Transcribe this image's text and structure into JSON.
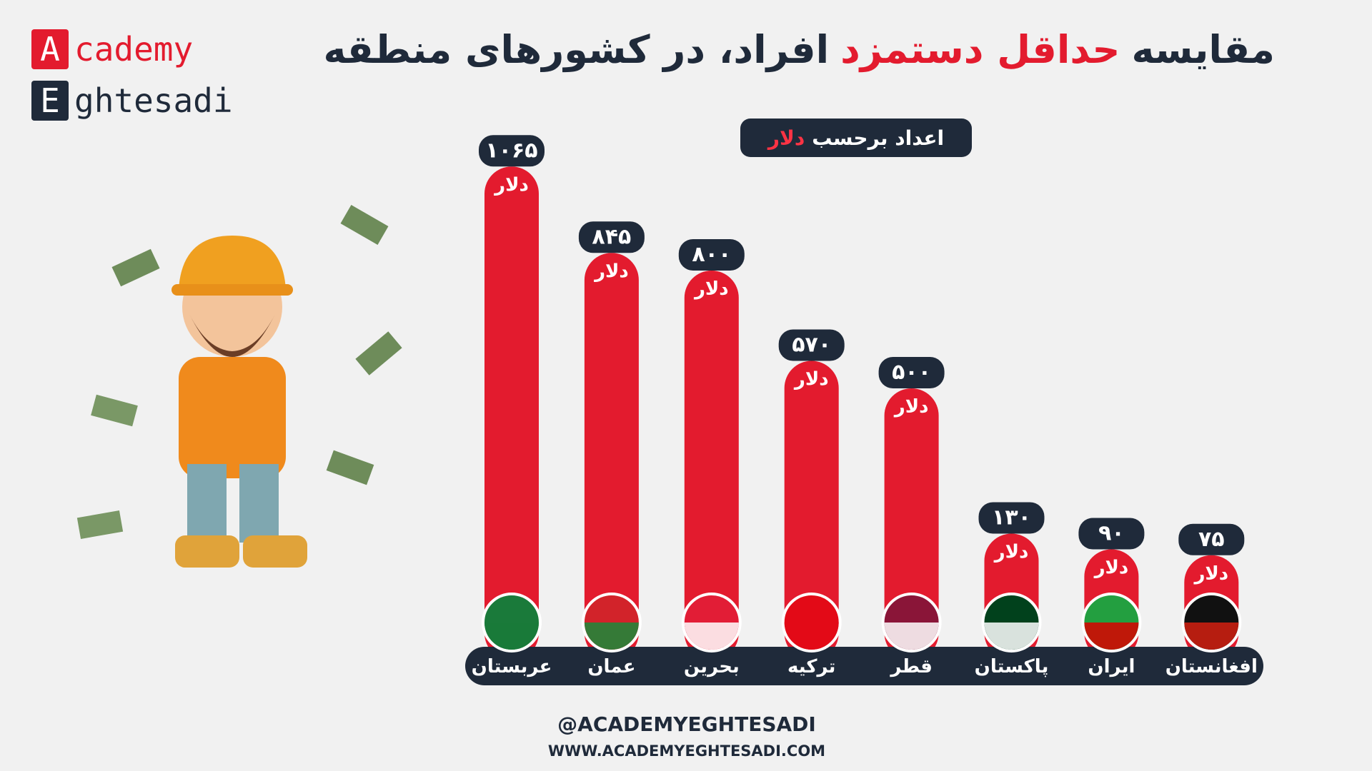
{
  "logo": {
    "initial_1": "A",
    "rest_1": "cademy",
    "initial_2": "E",
    "rest_2": "ghtesadi"
  },
  "chart_data": {
    "type": "bar",
    "title_parts": [
      "مقایسه",
      "حداقل دستمزد",
      "افراد، در کشورهای منطقه"
    ],
    "subtitle_parts": [
      "اعداد برحسب",
      "دلار"
    ],
    "unit": "دلار",
    "categories": [
      "عربستان",
      "عمان",
      "بحرین",
      "ترکیه",
      "قطر",
      "پاکستان",
      "ایران",
      "افغانستان"
    ],
    "values": [
      1065,
      845,
      800,
      570,
      500,
      130,
      90,
      75
    ],
    "value_labels": [
      "۱۰۶۵",
      "۸۴۵",
      "۸۰۰",
      "۵۷۰",
      "۵۰۰",
      "۱۳۰",
      "۹۰",
      "۷۵"
    ],
    "color": "#e31b2e"
  },
  "footer": {
    "handle": "@ACADEMYEGHTESADI",
    "website": "WWW.ACADEMYEGHTESADI.COM"
  }
}
